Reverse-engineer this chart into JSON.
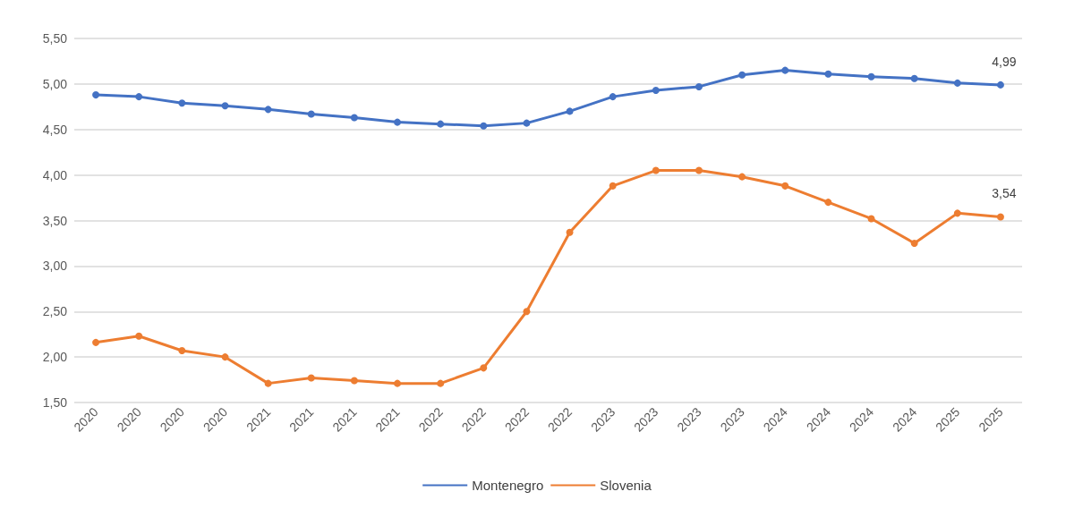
{
  "chart_data": {
    "type": "line",
    "categories": [
      "2020",
      "2020",
      "2020",
      "2020",
      "2021",
      "2021",
      "2021",
      "2021",
      "2022",
      "2022",
      "2022",
      "2022",
      "2023",
      "2023",
      "2023",
      "2023",
      "2024",
      "2024",
      "2024",
      "2024",
      "2025",
      "2025"
    ],
    "series": [
      {
        "name": "Montenegro",
        "color": "#4472c4",
        "values": [
          4.88,
          4.86,
          4.79,
          4.76,
          4.72,
          4.67,
          4.63,
          4.58,
          4.56,
          4.54,
          4.57,
          4.7,
          4.86,
          4.93,
          4.97,
          5.1,
          5.15,
          5.11,
          5.08,
          5.06,
          5.01,
          4.99
        ],
        "value_labels": [
          null,
          null,
          null,
          null,
          null,
          null,
          null,
          null,
          null,
          null,
          null,
          null,
          null,
          null,
          null,
          null,
          null,
          null,
          null,
          null,
          null,
          "4,99"
        ]
      },
      {
        "name": "Slovenia",
        "color": "#ed7d31",
        "values": [
          2.16,
          2.23,
          2.07,
          2.0,
          1.71,
          1.77,
          1.74,
          1.71,
          1.71,
          1.88,
          2.5,
          3.37,
          3.88,
          4.05,
          4.05,
          3.98,
          3.88,
          3.7,
          3.52,
          3.25,
          3.58,
          3.54
        ],
        "value_labels": [
          null,
          null,
          null,
          null,
          null,
          null,
          null,
          null,
          null,
          null,
          null,
          null,
          null,
          null,
          null,
          null,
          null,
          null,
          null,
          null,
          null,
          "3,54"
        ]
      }
    ],
    "ylim": [
      1.5,
      5.5
    ],
    "yticks": [
      {
        "value": 1.5,
        "label": "1,50"
      },
      {
        "value": 2,
        "label": "2,00"
      },
      {
        "value": 2.5,
        "label": "2,50"
      },
      {
        "value": 3,
        "label": "3,00"
      },
      {
        "value": 3.5,
        "label": "3,50"
      },
      {
        "value": 4,
        "label": "4,00"
      },
      {
        "value": 4.5,
        "label": "4,50"
      },
      {
        "value": 5,
        "label": "5,00"
      },
      {
        "value": 5.5,
        "label": "5,50"
      }
    ],
    "grid": "y",
    "legend": "bottom",
    "marker": "circle",
    "line_style": "solid"
  }
}
